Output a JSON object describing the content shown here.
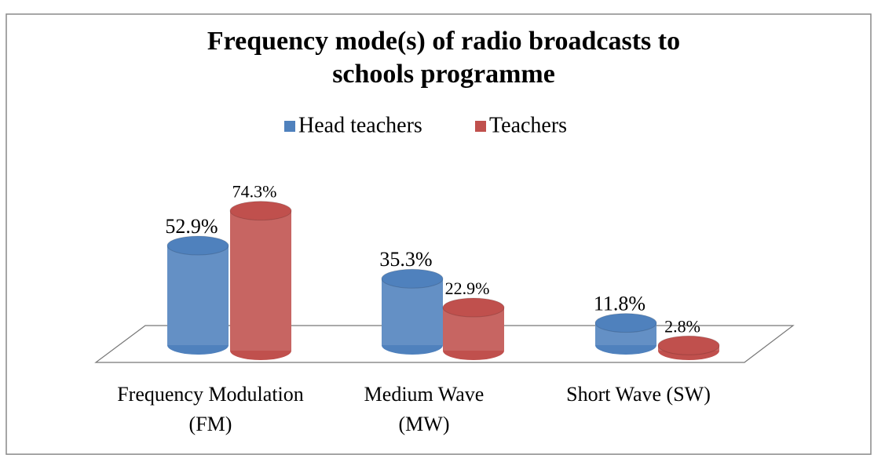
{
  "chart_data": {
    "type": "bar3d",
    "title": "Frequency mode(s) of radio broadcasts to schools programme",
    "categories": [
      "Frequency Modulation (FM)",
      "Medium Wave (MW)",
      "Short Wave (SW)"
    ],
    "series": [
      {
        "name": "Head teachers",
        "color": "#4f81bd",
        "values": [
          52.9,
          35.3,
          11.8
        ],
        "value_labels": [
          "52.9%",
          "35.3%",
          "11.8%"
        ]
      },
      {
        "name": "Teachers",
        "color": "#c0504d",
        "values": [
          74.3,
          22.9,
          2.8
        ],
        "value_labels": [
          "74.3%",
          "22.9%",
          "2.8%"
        ]
      }
    ],
    "ylim": [
      0,
      100
    ],
    "legend": "top"
  }
}
